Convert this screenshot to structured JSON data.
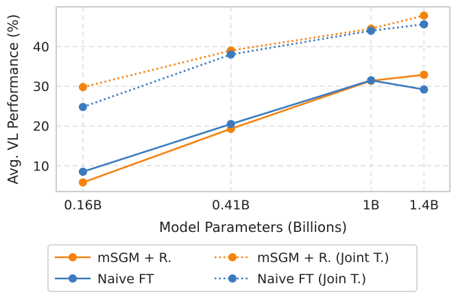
{
  "chart_data": {
    "type": "line",
    "title": "",
    "xlabel": "Model Parameters (Billions)",
    "ylabel": "Avg. VL Performance (%)",
    "x": [
      0.16,
      0.41,
      1.0,
      1.4
    ],
    "x_tick_labels": [
      "0.16B",
      "0.41B",
      "1B",
      "1.4B"
    ],
    "x_scale": "log",
    "xlim": [
      0.135,
      1.65
    ],
    "ylim": [
      3.5,
      50
    ],
    "y_ticks": [
      10,
      20,
      30,
      40
    ],
    "y_tick_labels": [
      "10",
      "20",
      "30",
      "40"
    ],
    "grid": true,
    "legend_position": "bottom-center",
    "series": [
      {
        "name": "mSGM + R.",
        "values": [
          5.8,
          19.3,
          31.4,
          32.9
        ],
        "color": "#f5820d",
        "style": "solid"
      },
      {
        "name": "Naive FT",
        "values": [
          8.5,
          20.5,
          31.5,
          29.2
        ],
        "color": "#3a7bbf",
        "style": "solid"
      },
      {
        "name": "mSGM + R. (Joint T.)",
        "values": [
          29.8,
          39.0,
          44.5,
          47.8
        ],
        "color": "#f5820d",
        "style": "dotted"
      },
      {
        "name": "Naive FT (Join T.)",
        "values": [
          24.8,
          38.0,
          44.0,
          45.6
        ],
        "color": "#3a7bbf",
        "style": "dotted"
      }
    ]
  }
}
